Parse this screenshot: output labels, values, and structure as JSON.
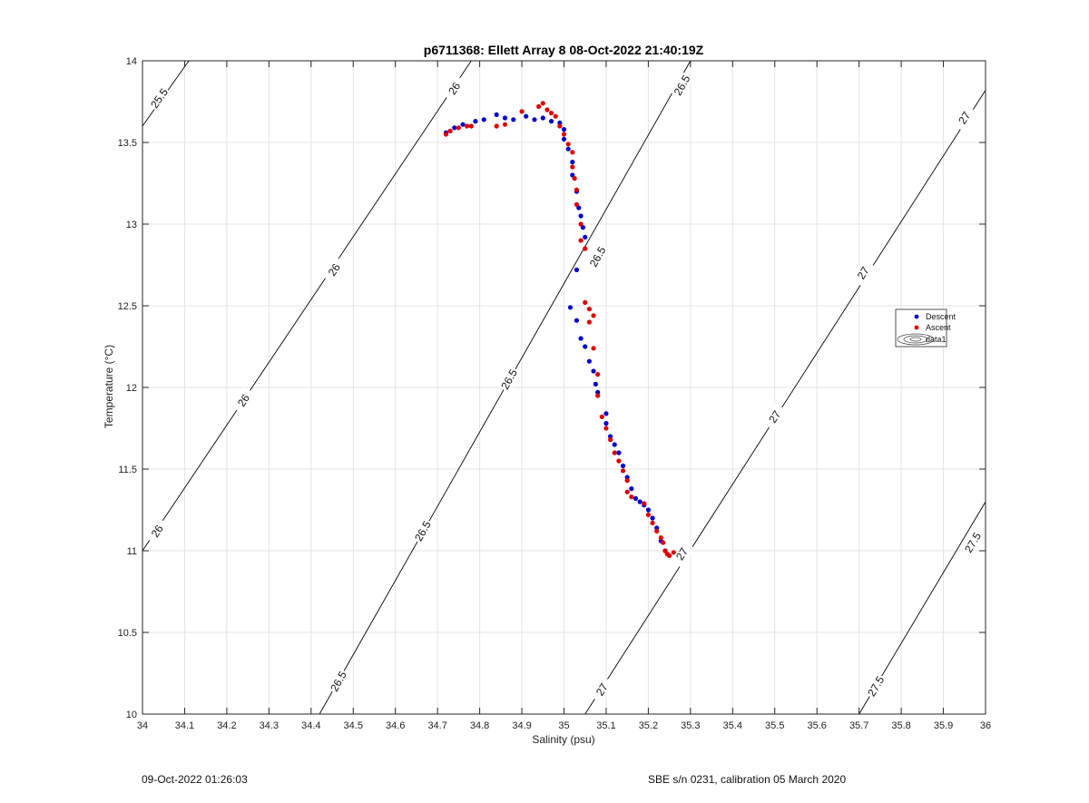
{
  "footer": {
    "left": "09-Oct-2022 01:26:03",
    "right": "SBE s/n 0231, calibration 05 March 2020"
  },
  "chart_data": {
    "type": "scatter",
    "title": "p6711368: Ellett Array 8 08-Oct-2022 21:40:19Z",
    "xlabel": "Salinity (psu)",
    "ylabel": "Temperature (°C)",
    "xlim": [
      34,
      36
    ],
    "ylim": [
      10,
      14
    ],
    "xticks": [
      34,
      34.1,
      34.2,
      34.3,
      34.4,
      34.5,
      34.6,
      34.7,
      34.8,
      34.9,
      35,
      35.1,
      35.2,
      35.3,
      35.4,
      35.5,
      35.6,
      35.7,
      35.8,
      35.9,
      36
    ],
    "xtick_labels": [
      "34",
      "34.1",
      "34.2",
      "34.3",
      "34.4",
      "34.5",
      "34.6",
      "34.7",
      "34.8",
      "34.9",
      "35",
      "35.1",
      "35.2",
      "35.3",
      "35.4",
      "35.5",
      "35.6",
      "35.7",
      "35.8",
      "35.9",
      "36"
    ],
    "yticks": [
      10,
      10.5,
      11,
      11.5,
      12,
      12.5,
      13,
      13.5,
      14
    ],
    "ytick_labels": [
      "10",
      "10.5",
      "11",
      "11.5",
      "12",
      "12.5",
      "13",
      "13.5",
      "14"
    ],
    "grid": true,
    "legend_position": "right",
    "colors": {
      "descent": "#0000cc",
      "ascent": "#dd0000",
      "contour": "#000000"
    },
    "series": [
      {
        "name": "Descent",
        "color": "#0000cc",
        "points": [
          [
            34.72,
            13.56
          ],
          [
            34.74,
            13.59
          ],
          [
            34.76,
            13.61
          ],
          [
            34.79,
            13.63
          ],
          [
            34.81,
            13.64
          ],
          [
            34.84,
            13.67
          ],
          [
            34.86,
            13.65
          ],
          [
            34.88,
            13.64
          ],
          [
            34.91,
            13.66
          ],
          [
            34.93,
            13.64
          ],
          [
            34.95,
            13.65
          ],
          [
            34.97,
            13.63
          ],
          [
            34.99,
            13.62
          ],
          [
            35.0,
            13.58
          ],
          [
            35.0,
            13.52
          ],
          [
            35.01,
            13.46
          ],
          [
            35.02,
            13.38
          ],
          [
            35.02,
            13.3
          ],
          [
            35.03,
            13.2
          ],
          [
            35.035,
            13.1
          ],
          [
            35.04,
            13.05
          ],
          [
            35.045,
            12.98
          ],
          [
            35.05,
            12.92
          ],
          [
            35.03,
            12.72
          ],
          [
            35.015,
            12.49
          ],
          [
            35.03,
            12.41
          ],
          [
            35.04,
            12.3
          ],
          [
            35.05,
            12.25
          ],
          [
            35.06,
            12.16
          ],
          [
            35.07,
            12.1
          ],
          [
            35.075,
            12.02
          ],
          [
            35.08,
            11.97
          ],
          [
            35.1,
            11.84
          ],
          [
            35.1,
            11.78
          ],
          [
            35.11,
            11.7
          ],
          [
            35.12,
            11.65
          ],
          [
            35.13,
            11.6
          ],
          [
            35.14,
            11.52
          ],
          [
            35.15,
            11.45
          ],
          [
            35.16,
            11.38
          ],
          [
            35.17,
            11.32
          ],
          [
            35.18,
            11.3
          ],
          [
            35.19,
            11.28
          ],
          [
            35.2,
            11.25
          ],
          [
            35.21,
            11.2
          ],
          [
            35.22,
            11.14
          ],
          [
            35.23,
            11.06
          ],
          [
            35.24,
            11.0
          ]
        ]
      },
      {
        "name": "Ascent",
        "color": "#dd0000",
        "points": [
          [
            34.72,
            13.55
          ],
          [
            34.73,
            13.57
          ],
          [
            34.75,
            13.59
          ],
          [
            34.77,
            13.6
          ],
          [
            34.78,
            13.6
          ],
          [
            34.84,
            13.6
          ],
          [
            34.86,
            13.61
          ],
          [
            34.9,
            13.69
          ],
          [
            34.94,
            13.72
          ],
          [
            34.95,
            13.74
          ],
          [
            34.96,
            13.7
          ],
          [
            34.97,
            13.68
          ],
          [
            34.98,
            13.66
          ],
          [
            34.99,
            13.6
          ],
          [
            35.0,
            13.55
          ],
          [
            35.01,
            13.49
          ],
          [
            35.02,
            13.44
          ],
          [
            35.02,
            13.35
          ],
          [
            35.025,
            13.28
          ],
          [
            35.03,
            13.21
          ],
          [
            35.03,
            13.12
          ],
          [
            35.04,
            13.0
          ],
          [
            35.04,
            12.9
          ],
          [
            35.05,
            12.85
          ],
          [
            35.05,
            12.52
          ],
          [
            35.06,
            12.48
          ],
          [
            35.07,
            12.44
          ],
          [
            35.06,
            12.4
          ],
          [
            35.07,
            12.24
          ],
          [
            35.08,
            12.08
          ],
          [
            35.08,
            11.95
          ],
          [
            35.09,
            11.82
          ],
          [
            35.1,
            11.75
          ],
          [
            35.11,
            11.68
          ],
          [
            35.12,
            11.6
          ],
          [
            35.13,
            11.55
          ],
          [
            35.14,
            11.49
          ],
          [
            35.15,
            11.43
          ],
          [
            35.15,
            11.36
          ],
          [
            35.16,
            11.33
          ],
          [
            35.19,
            11.29
          ],
          [
            35.2,
            11.22
          ],
          [
            35.21,
            11.17
          ],
          [
            35.22,
            11.12
          ],
          [
            35.23,
            11.08
          ],
          [
            35.24,
            11.0
          ],
          [
            35.245,
            10.98
          ],
          [
            35.25,
            10.97
          ],
          [
            35.26,
            10.99
          ],
          [
            35.235,
            11.05
          ]
        ]
      }
    ],
    "legend": [
      "Descent",
      "Ascent",
      "data1"
    ],
    "contours": [
      {
        "label": "25.5",
        "points": [
          [
            34.0,
            13.6
          ],
          [
            34.11,
            14.0
          ]
        ],
        "label_positions": [
          [
            34.04,
            13.77
          ]
        ]
      },
      {
        "label": "26",
        "points": [
          [
            34.0,
            11.0
          ],
          [
            34.78,
            14.0
          ]
        ],
        "label_positions": [
          [
            34.035,
            11.12
          ],
          [
            34.24,
            11.92
          ],
          [
            34.455,
            12.72
          ],
          [
            34.74,
            13.83
          ]
        ]
      },
      {
        "label": "26.5",
        "points": [
          [
            34.42,
            10.0
          ],
          [
            35.3,
            14.0
          ]
        ],
        "label_positions": [
          [
            34.465,
            10.2
          ],
          [
            34.665,
            11.12
          ],
          [
            34.87,
            12.05
          ],
          [
            35.08,
            12.8
          ],
          [
            35.28,
            13.85
          ]
        ]
      },
      {
        "label": "27",
        "points": [
          [
            35.05,
            10.0
          ],
          [
            36.0,
            13.82
          ]
        ],
        "label_positions": [
          [
            35.09,
            10.15
          ],
          [
            35.28,
            10.98
          ],
          [
            35.5,
            11.82
          ],
          [
            35.71,
            12.7
          ],
          [
            35.95,
            13.65
          ]
        ]
      },
      {
        "label": "27.5",
        "points": [
          [
            35.7,
            10.0
          ],
          [
            36.0,
            11.3
          ]
        ],
        "label_positions": [
          [
            35.74,
            10.17
          ],
          [
            35.97,
            11.05
          ]
        ]
      }
    ]
  }
}
